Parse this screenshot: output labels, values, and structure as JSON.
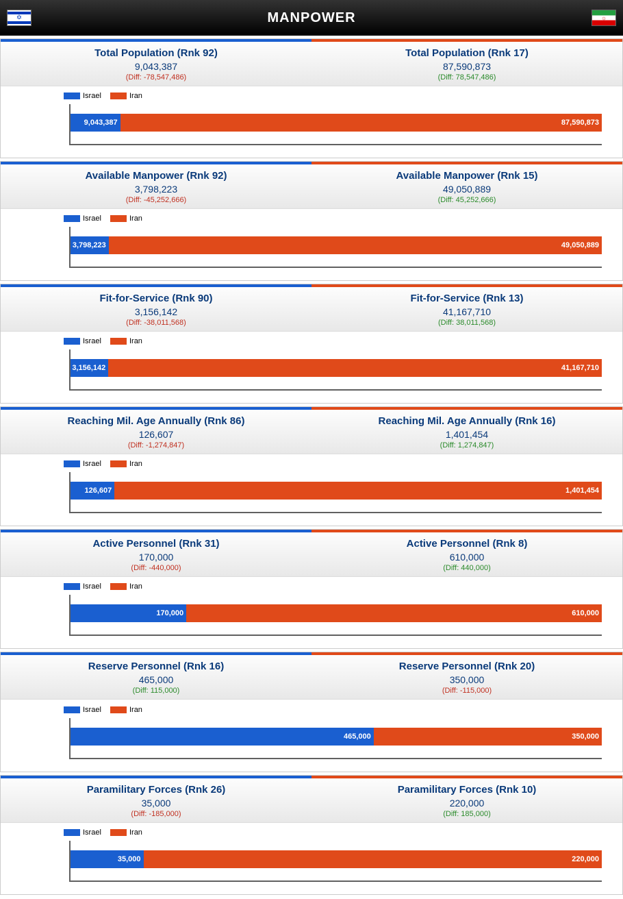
{
  "header": {
    "title": "MANPOWER"
  },
  "colors": {
    "israel": "#1a5fd0",
    "iran": "#e04a1a",
    "neg": "#c03020",
    "pos": "#2a8a2a"
  },
  "legend": {
    "a": "Israel",
    "b": "Iran"
  },
  "sections": [
    {
      "label": "Total Population",
      "a_rank": "92",
      "a_value": "9,043,387",
      "a_diff": "-78,547,486",
      "a_num": 9043387,
      "b_rank": "17",
      "b_value": "87,590,873",
      "b_diff": "78,547,486",
      "b_num": 87590873
    },
    {
      "label": "Available Manpower",
      "a_rank": "92",
      "a_value": "3,798,223",
      "a_diff": "-45,252,666",
      "a_num": 3798223,
      "b_rank": "15",
      "b_value": "49,050,889",
      "b_diff": "45,252,666",
      "b_num": 49050889
    },
    {
      "label": "Fit-for-Service",
      "a_rank": "90",
      "a_value": "3,156,142",
      "a_diff": "-38,011,568",
      "a_num": 3156142,
      "b_rank": "13",
      "b_value": "41,167,710",
      "b_diff": "38,011,568",
      "b_num": 41167710
    },
    {
      "label": "Reaching Mil. Age Annually",
      "a_rank": "86",
      "a_value": "126,607",
      "a_diff": "-1,274,847",
      "a_num": 126607,
      "b_rank": "16",
      "b_value": "1,401,454",
      "b_diff": "1,274,847",
      "b_num": 1401454
    },
    {
      "label": "Active Personnel",
      "a_rank": "31",
      "a_value": "170,000",
      "a_diff": "-440,000",
      "a_num": 170000,
      "b_rank": "8",
      "b_value": "610,000",
      "b_diff": "440,000",
      "b_num": 610000
    },
    {
      "label": "Reserve Personnel",
      "a_rank": "16",
      "a_value": "465,000",
      "a_diff": "115,000",
      "a_num": 465000,
      "b_rank": "20",
      "b_value": "350,000",
      "b_diff": "-115,000",
      "b_num": 350000
    },
    {
      "label": "Paramilitary Forces",
      "a_rank": "26",
      "a_value": "35,000",
      "a_diff": "-185,000",
      "a_num": 35000,
      "b_rank": "10",
      "b_value": "220,000",
      "b_diff": "185,000",
      "b_num": 220000
    }
  ]
}
